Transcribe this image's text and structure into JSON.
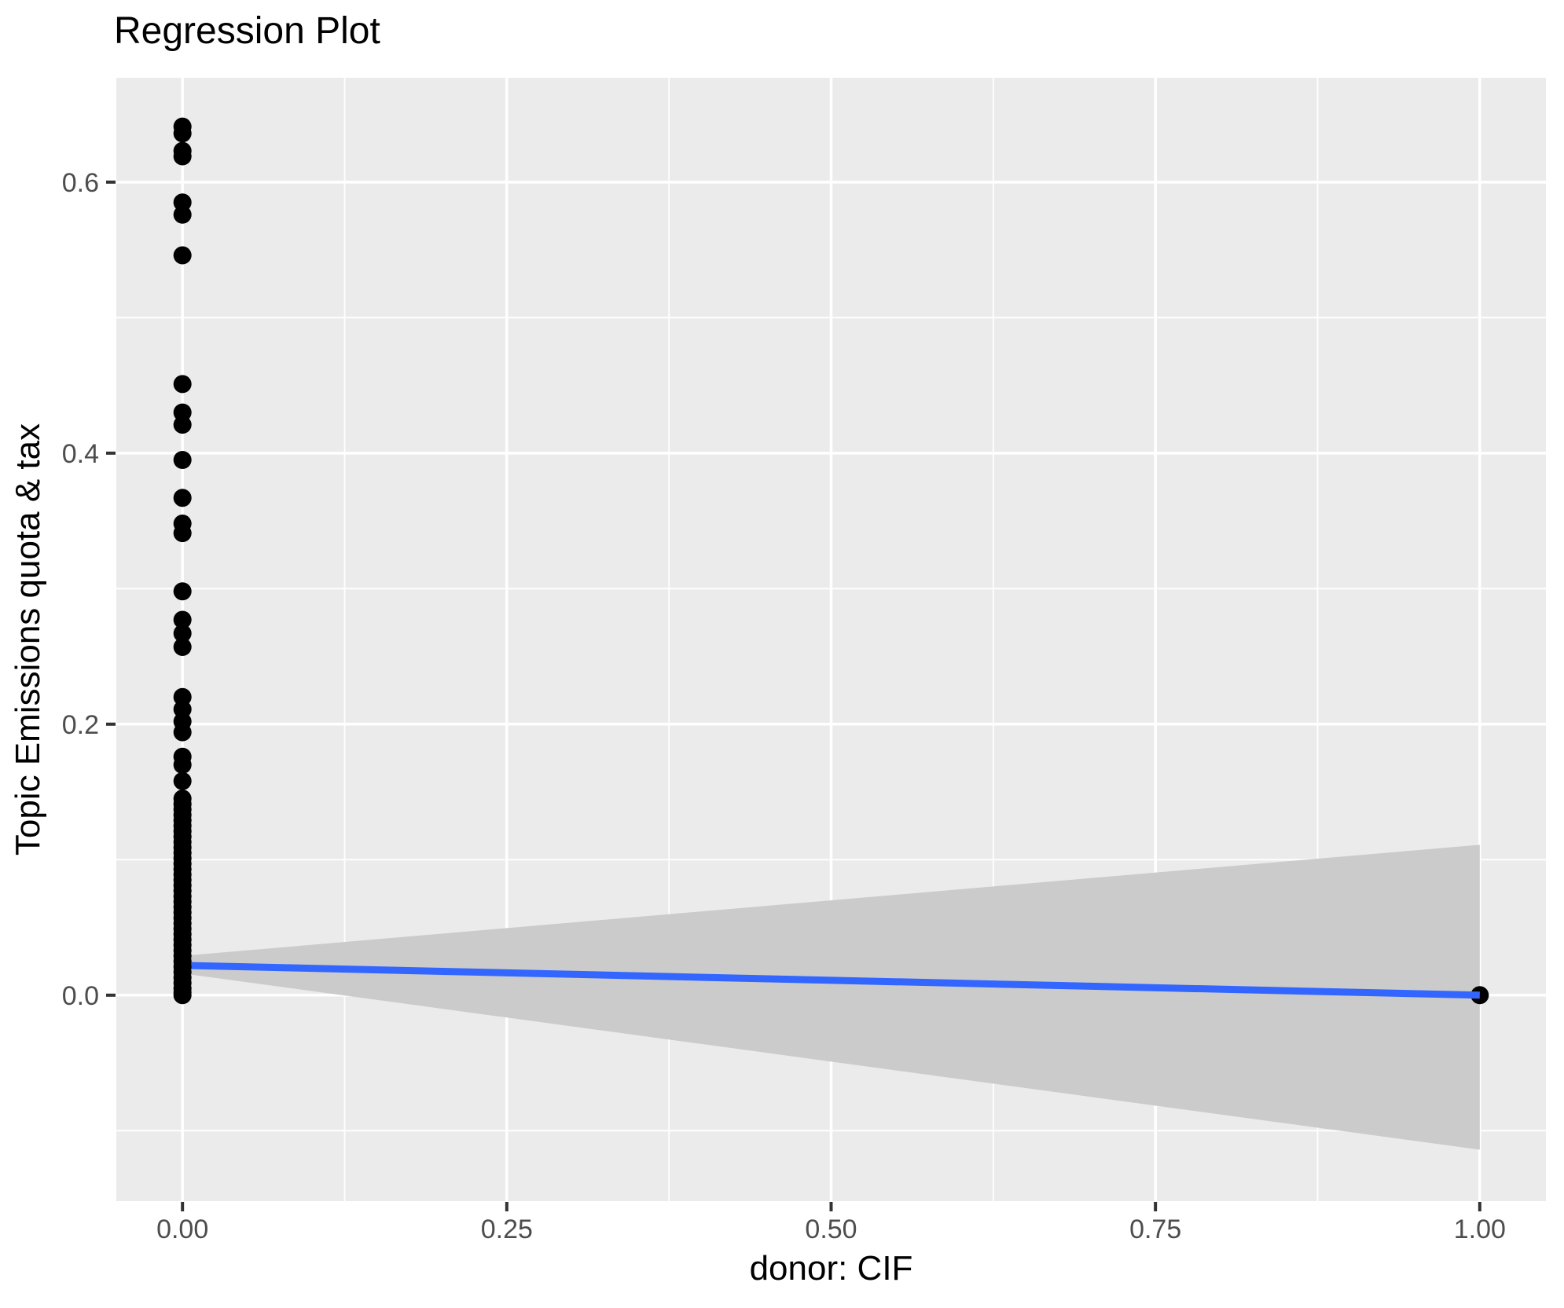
{
  "chart_data": {
    "type": "scatter",
    "title": "Regression Plot",
    "xlabel": "donor: CIF",
    "ylabel": "Topic Emissions quota & tax",
    "grid": "on",
    "legend": "none",
    "x_ticks": [
      "0.00",
      "0.25",
      "0.50",
      "0.75",
      "1.00"
    ],
    "x_tick_values": [
      0,
      0.25,
      0.5,
      0.75,
      1.0
    ],
    "x_minor_values": [
      0.125,
      0.375,
      0.625,
      0.875
    ],
    "y_ticks": [
      "0.0",
      "0.2",
      "0.4",
      "0.6"
    ],
    "y_tick_values": [
      0,
      0.2,
      0.4,
      0.6
    ],
    "y_minor_values": [
      -0.1,
      0.1,
      0.3,
      0.5
    ],
    "xlim": [
      -0.051,
      1.051
    ],
    "ylim": [
      -0.152,
      0.677
    ],
    "colors": {
      "panel_bg": "#EBEBEB",
      "grid": "#FFFFFF",
      "points": "#000000",
      "regression_line": "#3366FF",
      "ci_band": "#CBCBCB",
      "tick_labels": "#4D4D4D",
      "tick_marks": "#333333",
      "titles": "#000000"
    },
    "series": [
      {
        "name": "observations at donor: CIF = 0",
        "x": 0,
        "y": [
          0.641,
          0.636,
          0.623,
          0.619,
          0.585,
          0.576,
          0.546,
          0.451,
          0.43,
          0.421,
          0.395,
          0.367,
          0.348,
          0.341,
          0.298,
          0.277,
          0.267,
          0.257,
          0.22,
          0.211,
          0.202,
          0.194,
          0.176,
          0.17,
          0.158,
          0.145,
          0.141,
          0.137,
          0.133,
          0.129,
          0.125,
          0.121,
          0.117,
          0.113,
          0.109,
          0.105,
          0.101,
          0.097,
          0.093,
          0.089,
          0.085,
          0.081,
          0.077,
          0.073,
          0.069,
          0.065,
          0.061,
          0.057,
          0.053,
          0.049,
          0.045,
          0.041,
          0.037,
          0.033,
          0.029,
          0.025,
          0.021,
          0.017,
          0.013,
          0.009,
          0.005,
          0.002,
          0.0
        ]
      },
      {
        "name": "observation at donor: CIF = 1",
        "x": 1,
        "y": [
          0.0
        ]
      }
    ],
    "regression": {
      "x": [
        0,
        1
      ],
      "y": [
        0.022,
        0.0
      ]
    },
    "ci_band": {
      "x": [
        0,
        1
      ],
      "upper": [
        0.029,
        0.111
      ],
      "lower": [
        0.016,
        -0.114
      ]
    }
  }
}
